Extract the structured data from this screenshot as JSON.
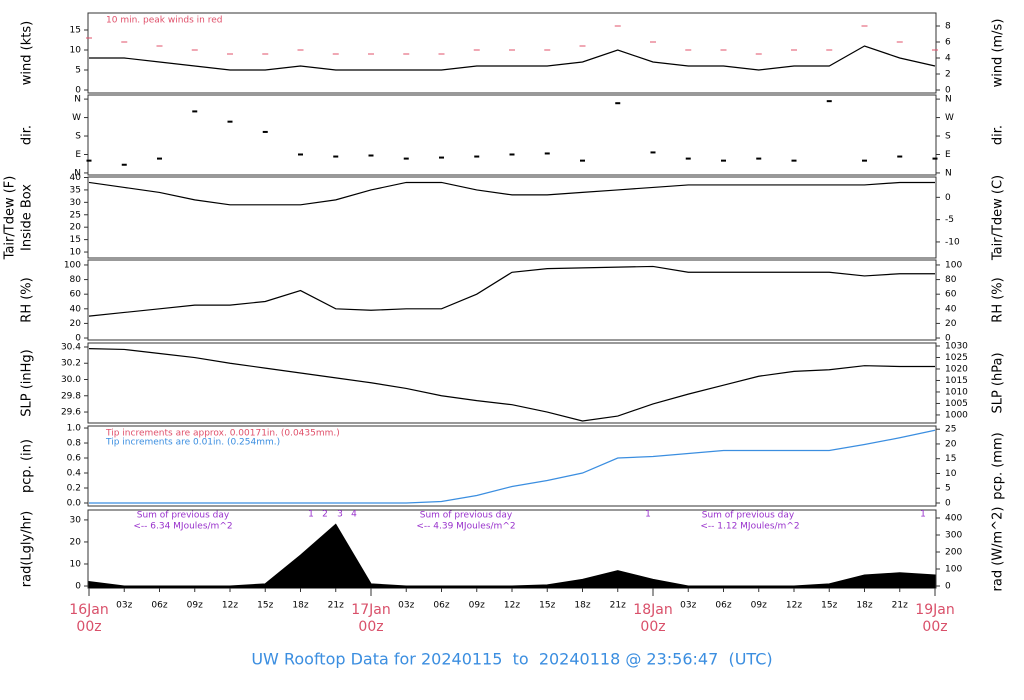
{
  "title": "UW Rooftop Data for 20240115  to  20240118 @ 23:56:47  (UTC)",
  "x_axis": {
    "x": [
      0,
      3,
      6,
      9,
      12,
      15,
      18,
      21,
      24,
      27,
      30,
      33,
      36,
      39,
      42,
      45,
      48,
      51,
      54,
      57,
      60,
      63,
      66,
      69,
      72
    ],
    "xlim": [
      0,
      72
    ],
    "xticks": [
      {
        "value": 3,
        "label": "03z"
      },
      {
        "value": 6,
        "label": "06z"
      },
      {
        "value": 9,
        "label": "09z"
      },
      {
        "value": 12,
        "label": "12z"
      },
      {
        "value": 15,
        "label": "15z"
      },
      {
        "value": 18,
        "label": "18z"
      },
      {
        "value": 21,
        "label": "21z"
      },
      {
        "value": 27,
        "label": "03z"
      },
      {
        "value": 30,
        "label": "06z"
      },
      {
        "value": 33,
        "label": "09z"
      },
      {
        "value": 36,
        "label": "12z"
      },
      {
        "value": 39,
        "label": "15z"
      },
      {
        "value": 42,
        "label": "18z"
      },
      {
        "value": 45,
        "label": "21z"
      },
      {
        "value": 51,
        "label": "03z"
      },
      {
        "value": 54,
        "label": "06z"
      },
      {
        "value": 57,
        "label": "09z"
      },
      {
        "value": 60,
        "label": "12z"
      },
      {
        "value": 63,
        "label": "15z"
      },
      {
        "value": 66,
        "label": "18z"
      },
      {
        "value": 69,
        "label": "21z"
      }
    ],
    "day_ticks": [
      {
        "value": 0,
        "date": "16Jan",
        "hour": "00z"
      },
      {
        "value": 24,
        "date": "17Jan",
        "hour": "00z"
      },
      {
        "value": 48,
        "date": "18Jan",
        "hour": "00z"
      },
      {
        "value": 72,
        "date": "19Jan",
        "hour": "00z"
      }
    ],
    "day_color": "#d9506a"
  },
  "chart_data": [
    {
      "type": "line",
      "ylabel": [
        "wind (kts)"
      ],
      "y2label": "wind (m/s)",
      "ylim": [
        -0.75,
        19.25
      ],
      "yticks": [
        0,
        5,
        10,
        15
      ],
      "y2lim": [
        -0.375,
        9.625
      ],
      "y2ticks": [
        0,
        2,
        4,
        6,
        8
      ],
      "annotations": [
        {
          "text": "10 min. peak winds in red",
          "color": "#e0506a"
        }
      ],
      "series": [
        {
          "name": "wind",
          "color": "#000000",
          "values": [
            8,
            8,
            7,
            6,
            5,
            5,
            6,
            5,
            5,
            5,
            5,
            6,
            6,
            6,
            7,
            10,
            7,
            6,
            6,
            5,
            6,
            6,
            11,
            8,
            6
          ]
        },
        {
          "name": "peak",
          "color": "#e0506a",
          "marker": "dash",
          "values": [
            13,
            12,
            11,
            10,
            9,
            9,
            10,
            9,
            9,
            9,
            9,
            10,
            10,
            10,
            11,
            16,
            12,
            10,
            10,
            9,
            10,
            10,
            16,
            12,
            10
          ]
        }
      ]
    },
    {
      "type": "scatter",
      "ylabel": [
        "dir."
      ],
      "y2label": "dir.",
      "ylim": [
        -10,
        380
      ],
      "yticks": [
        {
          "value": 0,
          "label": "N"
        },
        {
          "value": 90,
          "label": "E"
        },
        {
          "value": 180,
          "label": "S"
        },
        {
          "value": 270,
          "label": "W"
        },
        {
          "value": 360,
          "label": "N"
        }
      ],
      "y2lim": [
        -10,
        380
      ],
      "y2ticks": [
        {
          "value": 0,
          "label": "N"
        },
        {
          "value": 90,
          "label": "E"
        },
        {
          "value": 180,
          "label": "S"
        },
        {
          "value": 270,
          "label": "W"
        },
        {
          "value": 360,
          "label": "N"
        }
      ],
      "series": [
        {
          "name": "dir",
          "color": "#000000",
          "values": [
            60,
            40,
            70,
            300,
            250,
            200,
            90,
            80,
            85,
            70,
            75,
            80,
            90,
            95,
            60,
            340,
            100,
            70,
            60,
            70,
            60,
            350,
            60,
            80,
            70
          ]
        }
      ]
    },
    {
      "type": "line",
      "ylabel": [
        "Tair/Tdew (F)",
        "Inside Box"
      ],
      "y2label": "Tair/Tdew (C)",
      "ylim": [
        7.6,
        40.2
      ],
      "yticks": [
        10,
        15,
        20,
        25,
        30,
        35,
        40
      ],
      "y2lim": [
        -13.6,
        4.56
      ],
      "y2ticks": [
        -10,
        -5,
        0
      ],
      "series": [
        {
          "name": "temp",
          "color": "#000000",
          "values": [
            38,
            36,
            34,
            31,
            29,
            29,
            29,
            31,
            35,
            38,
            38,
            35,
            33,
            33,
            34,
            35,
            36,
            37,
            37,
            37,
            37,
            37,
            37,
            38,
            38
          ]
        }
      ]
    },
    {
      "type": "line",
      "ylabel": [
        "RH (%)"
      ],
      "y2label": "RH (%)",
      "ylim": [
        -2.7,
        106.8
      ],
      "yticks": [
        0,
        20,
        40,
        60,
        80,
        100
      ],
      "y2lim": [
        -2.7,
        106.8
      ],
      "y2ticks": [
        0,
        20,
        40,
        60,
        80,
        100
      ],
      "series": [
        {
          "name": "rh",
          "color": "#000000",
          "values": [
            30,
            35,
            40,
            45,
            45,
            50,
            65,
            40,
            38,
            40,
            40,
            60,
            90,
            95,
            96,
            97,
            98,
            90,
            90,
            90,
            90,
            90,
            85,
            88,
            88
          ]
        }
      ]
    },
    {
      "type": "line",
      "ylabel": [
        "SLP (inHg)"
      ],
      "y2label": "SLP (hPa)",
      "ylim": [
        29.465,
        30.449
      ],
      "yticks": [
        29.6,
        29.8,
        {
          "value": 30.0,
          "label": "30.0"
        },
        30.2,
        30.4
      ],
      "y2lim": [
        996.5,
        1031.3
      ],
      "y2ticks": [
        1000,
        1005,
        1010,
        1015,
        1020,
        1025,
        1030
      ],
      "series": [
        {
          "name": "slp",
          "color": "#000000",
          "values": [
            30.38,
            30.37,
            30.32,
            30.27,
            30.2,
            30.14,
            30.08,
            30.02,
            29.96,
            29.89,
            29.8,
            29.74,
            29.69,
            29.6,
            29.49,
            29.55,
            29.7,
            29.82,
            29.93,
            30.04,
            30.1,
            30.12,
            30.17,
            30.16,
            30.16
          ]
        }
      ]
    },
    {
      "type": "line",
      "ylabel": [
        "pcp. (in)"
      ],
      "y2label": "pcp. (mm)",
      "ylim": [
        -0.04,
        1.027
      ],
      "yticks": [
        {
          "value": 0,
          "label": "0.0"
        },
        0.2,
        0.4,
        0.6,
        0.8,
        {
          "value": 1,
          "label": "1.0"
        }
      ],
      "y2lim": [
        -1.016,
        26.08
      ],
      "y2ticks": [
        0,
        5,
        10,
        15,
        20,
        25
      ],
      "annotations": [
        {
          "text": "Tip increments are approx. 0.00171in. (0.0435mm.)",
          "color": "#e0506a"
        },
        {
          "text": "Tip increments are 0.01in. (0.254mm.)",
          "color": "#3b8ee0"
        }
      ],
      "series": [
        {
          "name": "pcp",
          "color": "#3b8ee0",
          "values": [
            0,
            0,
            0,
            0,
            0,
            0,
            0,
            0,
            0,
            0,
            0.02,
            0.1,
            0.22,
            0.3,
            0.4,
            0.6,
            0.62,
            0.66,
            0.7,
            0.7,
            0.7,
            0.7,
            0.78,
            0.87,
            0.97
          ]
        }
      ]
    },
    {
      "type": "area",
      "ylabel": [
        "rad(Lgly/hr)"
      ],
      "y2label": "rad (W/m^2)",
      "ylim": [
        -0.9,
        34.5
      ],
      "yticks": [
        0,
        10,
        20,
        30
      ],
      "y2lim": [
        -11.8,
        447
      ],
      "y2ticks": [
        0,
        100,
        200,
        300,
        400
      ],
      "annotations": [
        {
          "text": "Sum of previous day",
          "color": "#9932cc"
        },
        {
          "text": "<-- 6.34 MJoules/m^2",
          "color": "#9932cc"
        },
        {
          "text": "Sum of previous day",
          "color": "#9932cc"
        },
        {
          "text": "<-- 4.39 MJoules/m^2",
          "color": "#9932cc"
        },
        {
          "text": "Sum of previous day",
          "color": "#9932cc"
        },
        {
          "text": "<-- 1.12 MJoules/m^2",
          "color": "#9932cc"
        },
        {
          "text": "1",
          "color": "#9932cc"
        },
        {
          "text": "2",
          "color": "#9932cc"
        },
        {
          "text": "3",
          "color": "#9932cc"
        },
        {
          "text": "4",
          "color": "#9932cc"
        },
        {
          "text": "1",
          "color": "#9932cc"
        },
        {
          "text": "1",
          "color": "#9932cc"
        }
      ],
      "series": [
        {
          "name": "rad",
          "color": "#000000",
          "values": [
            2,
            0,
            0,
            0,
            0,
            1,
            14,
            28,
            1,
            0,
            0,
            0,
            0,
            0.5,
            3,
            7,
            3,
            0,
            0,
            0,
            0,
            1,
            5,
            6,
            5
          ]
        }
      ]
    }
  ]
}
